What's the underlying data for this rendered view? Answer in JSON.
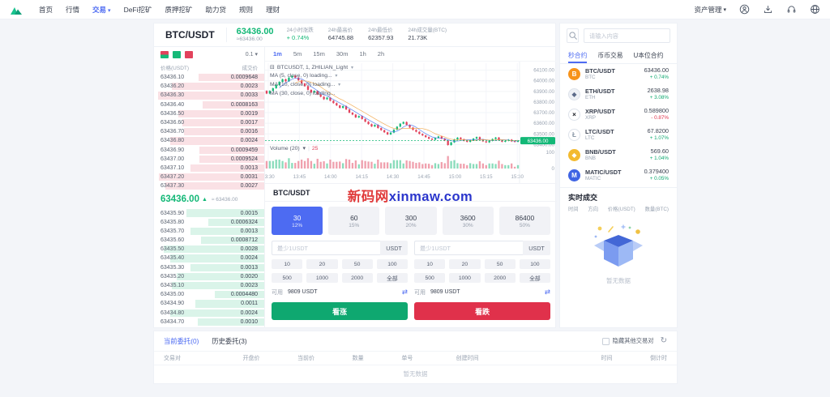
{
  "nav": {
    "items": [
      {
        "key": "home",
        "label": "首页"
      },
      {
        "key": "markets",
        "label": "行情"
      },
      {
        "key": "trade",
        "label": "交易",
        "active": true,
        "caret": true
      },
      {
        "key": "defi-mining",
        "label": "DeFi挖矿"
      },
      {
        "key": "staking-mining",
        "label": "质押挖矿"
      },
      {
        "key": "boost-loan",
        "label": "助力贷"
      },
      {
        "key": "rules",
        "label": "规则"
      },
      {
        "key": "wealth",
        "label": "理财"
      }
    ],
    "right": {
      "asset_label": "资产管理"
    }
  },
  "market_header": {
    "pair": "BTC/USDT",
    "price": "63436.00",
    "approx": "≈63436.00",
    "stats": [
      {
        "label": "24小时涨跌",
        "value": "+ 0.74%",
        "dir": "up"
      },
      {
        "label": "24h最高价",
        "value": "64745.88"
      },
      {
        "label": "24h最低价",
        "value": "62357.93"
      },
      {
        "label": "24h成交量(BTC)",
        "value": "21.73K"
      }
    ]
  },
  "orderbook": {
    "precision": "0.1",
    "col_price": "价格(USDT)",
    "col_amount": "成交价",
    "asks": [
      [
        "63436.10",
        "0.0009648"
      ],
      [
        "63436.20",
        "0.0023"
      ],
      [
        "63436.30",
        "0.0033"
      ],
      [
        "63436.40",
        "0.0008163"
      ],
      [
        "63436.50",
        "0.0019"
      ],
      [
        "63436.60",
        "0.0017"
      ],
      [
        "63436.70",
        "0.0016"
      ],
      [
        "63436.80",
        "0.0024"
      ],
      [
        "63436.90",
        "0.0009459"
      ],
      [
        "63437.00",
        "0.0009524"
      ],
      [
        "63437.10",
        "0.0013"
      ],
      [
        "63437.20",
        "0.0031"
      ],
      [
        "63437.30",
        "0.0027"
      ]
    ],
    "mid": {
      "price": "63436.00",
      "arrow": "▲",
      "approx": "≈ 63436.00"
    },
    "bids": [
      [
        "63435.90",
        "0.0015"
      ],
      [
        "63435.80",
        "0.0006324"
      ],
      [
        "63435.70",
        "0.0013"
      ],
      [
        "63435.60",
        "0.0008712"
      ],
      [
        "63435.50",
        "0.0028"
      ],
      [
        "63435.40",
        "0.0024"
      ],
      [
        "63435.30",
        "0.0013"
      ],
      [
        "63435.20",
        "0.0020"
      ],
      [
        "63435.10",
        "0.0023"
      ],
      [
        "63435.00",
        "0.0004480"
      ],
      [
        "63434.90",
        "0.0011"
      ],
      [
        "63434.80",
        "0.0024"
      ],
      [
        "63434.70",
        "0.0010"
      ]
    ]
  },
  "chart": {
    "timeframes": [
      "1m",
      "5m",
      "15m",
      "30m",
      "1h",
      "2h"
    ],
    "active_timeframe": "1m",
    "legend_main": "BTCUSDT, 1, ZHILIAN_Light",
    "legend_ma": [
      "MA (5, close, 0) loading...",
      "MA (10, close, 0) loading...",
      "MA (30, close, 0) loading..."
    ],
    "volume_legend": "Volume (20)",
    "volume_value": "25",
    "last_price": "63436.00"
  },
  "chart_data": {
    "type": "candlestick",
    "x_labels": [
      "13:30",
      "13:45",
      "14:00",
      "14:15",
      "14:30",
      "14:45",
      "15:00",
      "15:15",
      "15:30"
    ],
    "y_ticks": [
      "64100.00",
      "64000.00",
      "63900.00",
      "63800.00",
      "63700.00",
      "63600.00",
      "63500.00",
      "63400.00"
    ],
    "volume_ticks": [
      "100",
      "0"
    ],
    "ylim": [
      63380,
      64120
    ],
    "closes": [
      63880,
      63905,
      63930,
      63960,
      63990,
      64015,
      63995,
      64030,
      64048,
      64030,
      64005,
      63975,
      63950,
      63915,
      63890,
      63905,
      63872,
      63850,
      63826,
      63842,
      63812,
      63790,
      63768,
      63745,
      63762,
      63730,
      63700,
      63682,
      63655,
      63668,
      63640,
      63615,
      63592,
      63570,
      63585,
      63555,
      63535,
      63515,
      63495,
      63512,
      63540,
      63568,
      63596,
      63612,
      63585,
      63560,
      63538,
      63520,
      63500,
      63486,
      63470,
      63455,
      63445,
      63462,
      63476,
      63455,
      63438,
      63395,
      63420,
      63448,
      63465,
      63450,
      63435,
      63425,
      63442,
      63456,
      63470,
      63446,
      63430,
      63420,
      63436,
      63452,
      63466,
      63440,
      63426,
      63436,
      63446,
      63430,
      63426,
      63436
    ]
  },
  "trade_panel": {
    "title": "BTC/USDT",
    "durations": [
      {
        "seconds": "30",
        "rate": "12%",
        "active": true
      },
      {
        "seconds": "60",
        "rate": "15%"
      },
      {
        "seconds": "300",
        "rate": "20%"
      },
      {
        "seconds": "3600",
        "rate": "30%"
      },
      {
        "seconds": "86400",
        "rate": "50%"
      }
    ],
    "amount_placeholder": "最少1USDT",
    "unit": "USDT",
    "quick_amounts": [
      "10",
      "20",
      "50",
      "100",
      "500",
      "1000",
      "2000",
      "全部"
    ],
    "available_label": "可用",
    "available_value": "9809 USDT",
    "buy_up": "看涨",
    "buy_down": "看跌"
  },
  "watermark": {
    "red": "新码网",
    "blue": "xinmaw.com"
  },
  "sidebar": {
    "search_placeholder": "请输入内容",
    "tabs": [
      {
        "label": "秒合约",
        "active": true
      },
      {
        "label": "币币交易"
      },
      {
        "label": "U本位合约"
      }
    ],
    "coins": [
      {
        "pair": "BTC/USDT",
        "base": "BTC",
        "price": "63436.00",
        "change": "+ 0.74%",
        "dir": "up",
        "glyph": "B",
        "bg": "#f7931a",
        "fg": "#ffffff",
        "ring": false
      },
      {
        "pair": "ETH/USDT",
        "base": "ETH",
        "price": "2638.98",
        "change": "+ 3.08%",
        "dir": "up",
        "glyph": "◆",
        "bg": "#eef1f6",
        "fg": "#5c6b8a",
        "ring": true
      },
      {
        "pair": "XRP/USDT",
        "base": "XRP",
        "price": "0.589800",
        "change": "- 0.87%",
        "dir": "dn",
        "glyph": "×",
        "bg": "#ffffff",
        "fg": "#14181f",
        "ring": true
      },
      {
        "pair": "LTC/USDT",
        "base": "LTC",
        "price": "67.8200",
        "change": "+ 1.07%",
        "dir": "up",
        "glyph": "Ł",
        "bg": "#ffffff",
        "fg": "#8c99a8",
        "ring": true
      },
      {
        "pair": "BNB/USDT",
        "base": "BNB",
        "price": "569.60",
        "change": "+ 1.04%",
        "dir": "up",
        "glyph": "◆",
        "bg": "#f3ba2f",
        "fg": "#ffffff",
        "ring": false
      },
      {
        "pair": "MATIC/USDT",
        "base": "MATIC",
        "price": "0.379400",
        "change": "+ 0.05%",
        "dir": "up",
        "glyph": "M",
        "bg": "#3f64e4",
        "fg": "#ffffff",
        "ring": false
      }
    ],
    "trades": {
      "title": "实时成交",
      "columns": [
        "时间",
        "方向",
        "价格(USDT)",
        "数量(BTC)"
      ],
      "empty": "暂无数据"
    }
  },
  "orders": {
    "tabs": [
      {
        "label": "当前委托(0)",
        "active": true
      },
      {
        "label": "历史委托(3)"
      }
    ],
    "hide_label": "隐藏其他交易对",
    "columns": [
      "交易对",
      "开盘价",
      "当前价",
      "数量",
      "单号",
      "创建时间",
      "时间",
      "倒计时"
    ],
    "empty": "暂无数据"
  }
}
